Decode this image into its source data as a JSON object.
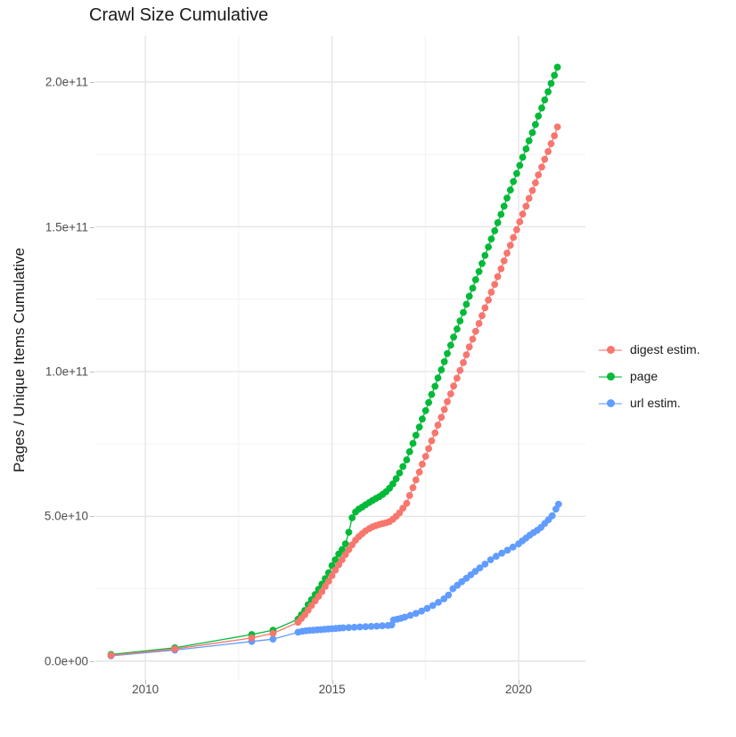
{
  "title": "Crawl Size Cumulative",
  "axes": {
    "y_title": "Pages / Unique Items Cumulative",
    "y_tick_labels": [
      "0.0e+00",
      "5.0e+10",
      "1.0e+11",
      "1.5e+11",
      "2.0e+11"
    ],
    "x_tick_labels": [
      "2010",
      "2015",
      "2020"
    ]
  },
  "legend": {
    "items": [
      {
        "label": "digest estim.",
        "color": "#F8766D"
      },
      {
        "label": "page",
        "color": "#00BA38"
      },
      {
        "label": "url estim.",
        "color": "#619CFF"
      }
    ]
  },
  "chart_data": {
    "type": "line",
    "title": "Crawl Size Cumulative",
    "xlabel": "",
    "ylabel": "Pages / Unique Items Cumulative",
    "xlim": [
      2008.66,
      2021.79
    ],
    "ylim": [
      -6500000000.0,
      216000000000.0
    ],
    "grid": true,
    "legend_position": "right",
    "x_major_ticks": [
      {
        "label": "2010",
        "value": 2010
      },
      {
        "label": "2015",
        "value": 2015
      },
      {
        "label": "2020",
        "value": 2020
      }
    ],
    "y_major_ticks": [
      {
        "label": "0.0e+00",
        "value": 0
      },
      {
        "label": "5.0e+10",
        "value": 50000000000.0
      },
      {
        "label": "1.0e+11",
        "value": 100000000000.0
      },
      {
        "label": "1.5e+11",
        "value": 150000000000.0
      },
      {
        "label": "2.0e+11",
        "value": 200000000000.0
      }
    ],
    "x_minor_gridlines": [
      2012.5,
      2017.5
    ],
    "y_minor_gridlines": [
      25000000000.0,
      75000000000.0,
      125000000000.0,
      175000000000.0
    ],
    "series": [
      {
        "name": "digest estim.",
        "color": "#F8766D",
        "points": [
          [
            2009.08,
            2000000000.0
          ],
          [
            2010.79,
            4200000000.0
          ],
          [
            2012.85,
            8000000000.0
          ],
          [
            2013.42,
            9600000000.0
          ],
          [
            2014.09,
            13400000000.0
          ],
          [
            2014.18,
            14700000000.0
          ],
          [
            2014.27,
            16000000000.0
          ],
          [
            2014.36,
            17600000000.0
          ],
          [
            2014.45,
            19200000000.0
          ],
          [
            2014.55,
            20800000000.0
          ],
          [
            2014.64,
            22400000000.0
          ],
          [
            2014.73,
            24000000000.0
          ],
          [
            2014.82,
            25800000000.0
          ],
          [
            2014.91,
            27600000000.0
          ],
          [
            2015.0,
            29500000000.0
          ],
          [
            2015.09,
            31400000000.0
          ],
          [
            2015.18,
            33300000000.0
          ],
          [
            2015.27,
            35000000000.0
          ],
          [
            2015.36,
            36800000000.0
          ],
          [
            2015.45,
            38500000000.0
          ],
          [
            2015.54,
            40200000000.0
          ],
          [
            2015.63,
            41800000000.0
          ],
          [
            2015.72,
            43000000000.0
          ],
          [
            2015.81,
            44000000000.0
          ],
          [
            2015.9,
            45000000000.0
          ],
          [
            2016.0,
            45800000000.0
          ],
          [
            2016.09,
            46400000000.0
          ],
          [
            2016.18,
            46800000000.0
          ],
          [
            2016.27,
            47200000000.0
          ],
          [
            2016.36,
            47500000000.0
          ],
          [
            2016.45,
            47800000000.0
          ],
          [
            2016.54,
            48200000000.0
          ],
          [
            2016.63,
            49000000000.0
          ],
          [
            2016.72,
            50000000000.0
          ],
          [
            2016.81,
            51200000000.0
          ],
          [
            2016.9,
            52800000000.0
          ],
          [
            2017.0,
            54500000000.0
          ],
          [
            2017.08,
            57200000000.0
          ],
          [
            2017.17,
            59900000000.0
          ],
          [
            2017.25,
            62600000000.0
          ],
          [
            2017.34,
            65300000000.0
          ],
          [
            2017.42,
            68000000000.0
          ],
          [
            2017.51,
            70700000000.0
          ],
          [
            2017.59,
            73400000000.0
          ],
          [
            2017.67,
            76100000000.0
          ],
          [
            2017.76,
            78800000000.0
          ],
          [
            2017.84,
            81500000000.0
          ],
          [
            2017.93,
            84200000000.0
          ],
          [
            2018.01,
            86900000000.0
          ],
          [
            2018.09,
            89600000000.0
          ],
          [
            2018.18,
            92300000000.0
          ],
          [
            2018.26,
            95000000000.0
          ],
          [
            2018.35,
            97700000000.0
          ],
          [
            2018.43,
            100400000000.0
          ],
          [
            2018.52,
            103100000000.0
          ],
          [
            2018.6,
            105800000000.0
          ],
          [
            2018.68,
            108500000000.0
          ],
          [
            2018.77,
            111200000000.0
          ],
          [
            2018.85,
            113900000000.0
          ],
          [
            2018.94,
            116600000000.0
          ],
          [
            2019.02,
            119300000000.0
          ],
          [
            2019.1,
            122000000000.0
          ],
          [
            2019.19,
            124700000000.0
          ],
          [
            2019.27,
            127400000000.0
          ],
          [
            2019.36,
            130100000000.0
          ],
          [
            2019.44,
            132800000000.0
          ],
          [
            2019.53,
            135500000000.0
          ],
          [
            2019.61,
            138200000000.0
          ],
          [
            2019.69,
            140900000000.0
          ],
          [
            2019.78,
            143600000000.0
          ],
          [
            2019.86,
            146300000000.0
          ],
          [
            2019.95,
            149000000000.0
          ],
          [
            2020.03,
            151700000000.0
          ],
          [
            2020.11,
            154400000000.0
          ],
          [
            2020.2,
            157100000000.0
          ],
          [
            2020.28,
            159800000000.0
          ],
          [
            2020.37,
            162500000000.0
          ],
          [
            2020.45,
            165200000000.0
          ],
          [
            2020.53,
            167900000000.0
          ],
          [
            2020.62,
            170600000000.0
          ],
          [
            2020.7,
            173300000000.0
          ],
          [
            2020.79,
            176000000000.0
          ],
          [
            2020.87,
            178700000000.0
          ],
          [
            2020.96,
            181400000000.0
          ],
          [
            2021.04,
            184500000000.0
          ]
        ]
      },
      {
        "name": "page",
        "color": "#00BA38",
        "points": [
          [
            2009.08,
            2300000000.0
          ],
          [
            2010.79,
            4600000000.0
          ],
          [
            2012.85,
            9200000000.0
          ],
          [
            2013.42,
            10700000000.0
          ],
          [
            2014.09,
            14500000000.0
          ],
          [
            2014.18,
            16000000000.0
          ],
          [
            2014.27,
            17500000000.0
          ],
          [
            2014.36,
            19500000000.0
          ],
          [
            2014.45,
            21200000000.0
          ],
          [
            2014.55,
            23000000000.0
          ],
          [
            2014.64,
            24800000000.0
          ],
          [
            2014.73,
            26600000000.0
          ],
          [
            2014.82,
            28500000000.0
          ],
          [
            2014.91,
            30500000000.0
          ],
          [
            2015.0,
            33000000000.0
          ],
          [
            2015.09,
            35000000000.0
          ],
          [
            2015.18,
            37000000000.0
          ],
          [
            2015.27,
            38500000000.0
          ],
          [
            2015.36,
            40500000000.0
          ],
          [
            2015.45,
            44500000000.0
          ],
          [
            2015.54,
            49500000000.0
          ],
          [
            2015.63,
            51500000000.0
          ],
          [
            2015.72,
            52500000000.0
          ],
          [
            2015.81,
            53200000000.0
          ],
          [
            2015.9,
            54000000000.0
          ],
          [
            2016.0,
            54800000000.0
          ],
          [
            2016.09,
            55500000000.0
          ],
          [
            2016.18,
            56200000000.0
          ],
          [
            2016.27,
            56800000000.0
          ],
          [
            2016.36,
            57600000000.0
          ],
          [
            2016.45,
            58500000000.0
          ],
          [
            2016.54,
            59700000000.0
          ],
          [
            2016.63,
            61200000000.0
          ],
          [
            2016.72,
            63000000000.0
          ],
          [
            2016.81,
            65000000000.0
          ],
          [
            2016.9,
            67200000000.0
          ],
          [
            2017.0,
            69500000000.0
          ],
          [
            2017.08,
            72300000000.0
          ],
          [
            2017.17,
            75200000000.0
          ],
          [
            2017.25,
            78000000000.0
          ],
          [
            2017.34,
            80800000000.0
          ],
          [
            2017.42,
            83600000000.0
          ],
          [
            2017.51,
            86500000000.0
          ],
          [
            2017.59,
            89300000000.0
          ],
          [
            2017.67,
            92100000000.0
          ],
          [
            2017.76,
            94900000000.0
          ],
          [
            2017.84,
            97800000000.0
          ],
          [
            2017.93,
            100600000000.0
          ],
          [
            2018.01,
            103400000000.0
          ],
          [
            2018.09,
            106200000000.0
          ],
          [
            2018.18,
            109100000000.0
          ],
          [
            2018.26,
            111900000000.0
          ],
          [
            2018.35,
            114700000000.0
          ],
          [
            2018.43,
            117500000000.0
          ],
          [
            2018.52,
            120400000000.0
          ],
          [
            2018.6,
            123200000000.0
          ],
          [
            2018.68,
            126000000000.0
          ],
          [
            2018.77,
            128800000000.0
          ],
          [
            2018.85,
            131700000000.0
          ],
          [
            2018.94,
            134500000000.0
          ],
          [
            2019.02,
            137300000000.0
          ],
          [
            2019.1,
            140100000000.0
          ],
          [
            2019.19,
            143000000000.0
          ],
          [
            2019.27,
            145800000000.0
          ],
          [
            2019.36,
            148600000000.0
          ],
          [
            2019.44,
            151400000000.0
          ],
          [
            2019.53,
            154300000000.0
          ],
          [
            2019.61,
            157100000000.0
          ],
          [
            2019.69,
            159900000000.0
          ],
          [
            2019.78,
            162700000000.0
          ],
          [
            2019.86,
            165600000000.0
          ],
          [
            2019.95,
            168400000000.0
          ],
          [
            2020.03,
            171200000000.0
          ],
          [
            2020.11,
            174000000000.0
          ],
          [
            2020.2,
            176900000000.0
          ],
          [
            2020.28,
            179700000000.0
          ],
          [
            2020.37,
            182500000000.0
          ],
          [
            2020.45,
            185300000000.0
          ],
          [
            2020.53,
            188200000000.0
          ],
          [
            2020.62,
            191000000000.0
          ],
          [
            2020.7,
            193800000000.0
          ],
          [
            2020.79,
            196600000000.0
          ],
          [
            2020.87,
            199500000000.0
          ],
          [
            2020.96,
            202300000000.0
          ],
          [
            2021.04,
            205100000000.0
          ]
        ]
      },
      {
        "name": "url estim.",
        "color": "#619CFF",
        "points": [
          [
            2009.08,
            1800000000.0
          ],
          [
            2010.79,
            3800000000.0
          ],
          [
            2012.85,
            6800000000.0
          ],
          [
            2013.42,
            7600000000.0
          ],
          [
            2014.09,
            10000000000.0
          ],
          [
            2014.2,
            10300000000.0
          ],
          [
            2014.3,
            10500000000.0
          ],
          [
            2014.4,
            10600000000.0
          ],
          [
            2014.5,
            10700000000.0
          ],
          [
            2014.6,
            10800000000.0
          ],
          [
            2014.7,
            10900000000.0
          ],
          [
            2014.8,
            11000000000.0
          ],
          [
            2014.9,
            11100000000.0
          ],
          [
            2015.0,
            11200000000.0
          ],
          [
            2015.1,
            11300000000.0
          ],
          [
            2015.2,
            11400000000.0
          ],
          [
            2015.3,
            11500000000.0
          ],
          [
            2015.45,
            11600000000.0
          ],
          [
            2015.6,
            11700000000.0
          ],
          [
            2015.75,
            11800000000.0
          ],
          [
            2015.9,
            11900000000.0
          ],
          [
            2016.05,
            12000000000.0
          ],
          [
            2016.2,
            12100000000.0
          ],
          [
            2016.35,
            12200000000.0
          ],
          [
            2016.5,
            12300000000.0
          ],
          [
            2016.6,
            12500000000.0
          ],
          [
            2016.65,
            14200000000.0
          ],
          [
            2016.75,
            14500000000.0
          ],
          [
            2016.85,
            14800000000.0
          ],
          [
            2016.95,
            15200000000.0
          ],
          [
            2017.1,
            15800000000.0
          ],
          [
            2017.25,
            16500000000.0
          ],
          [
            2017.4,
            17300000000.0
          ],
          [
            2017.55,
            18200000000.0
          ],
          [
            2017.7,
            19200000000.0
          ],
          [
            2017.85,
            20300000000.0
          ],
          [
            2018.0,
            21500000000.0
          ],
          [
            2018.12,
            22800000000.0
          ],
          [
            2018.24,
            25000000000.0
          ],
          [
            2018.36,
            26200000000.0
          ],
          [
            2018.48,
            27400000000.0
          ],
          [
            2018.6,
            28600000000.0
          ],
          [
            2018.72,
            29800000000.0
          ],
          [
            2018.84,
            31000000000.0
          ],
          [
            2018.96,
            32200000000.0
          ],
          [
            2019.1,
            33500000000.0
          ],
          [
            2019.25,
            35000000000.0
          ],
          [
            2019.4,
            36200000000.0
          ],
          [
            2019.55,
            37300000000.0
          ],
          [
            2019.7,
            38300000000.0
          ],
          [
            2019.85,
            39400000000.0
          ],
          [
            2020.0,
            40500000000.0
          ],
          [
            2020.1,
            41500000000.0
          ],
          [
            2020.2,
            42500000000.0
          ],
          [
            2020.3,
            43500000000.0
          ],
          [
            2020.4,
            44400000000.0
          ],
          [
            2020.5,
            45200000000.0
          ],
          [
            2020.6,
            46200000000.0
          ],
          [
            2020.7,
            47500000000.0
          ],
          [
            2020.8,
            48800000000.0
          ],
          [
            2020.9,
            50200000000.0
          ],
          [
            2021.0,
            52500000000.0
          ],
          [
            2021.07,
            54200000000.0
          ]
        ]
      }
    ]
  },
  "style": {
    "major_grid_color": "#e5e5e5",
    "minor_grid_color": "#f2f2f2",
    "tick_color": "#bdbdbd",
    "tick_label_color": "#4d4d4d",
    "title_color": "#1a1a1a"
  }
}
